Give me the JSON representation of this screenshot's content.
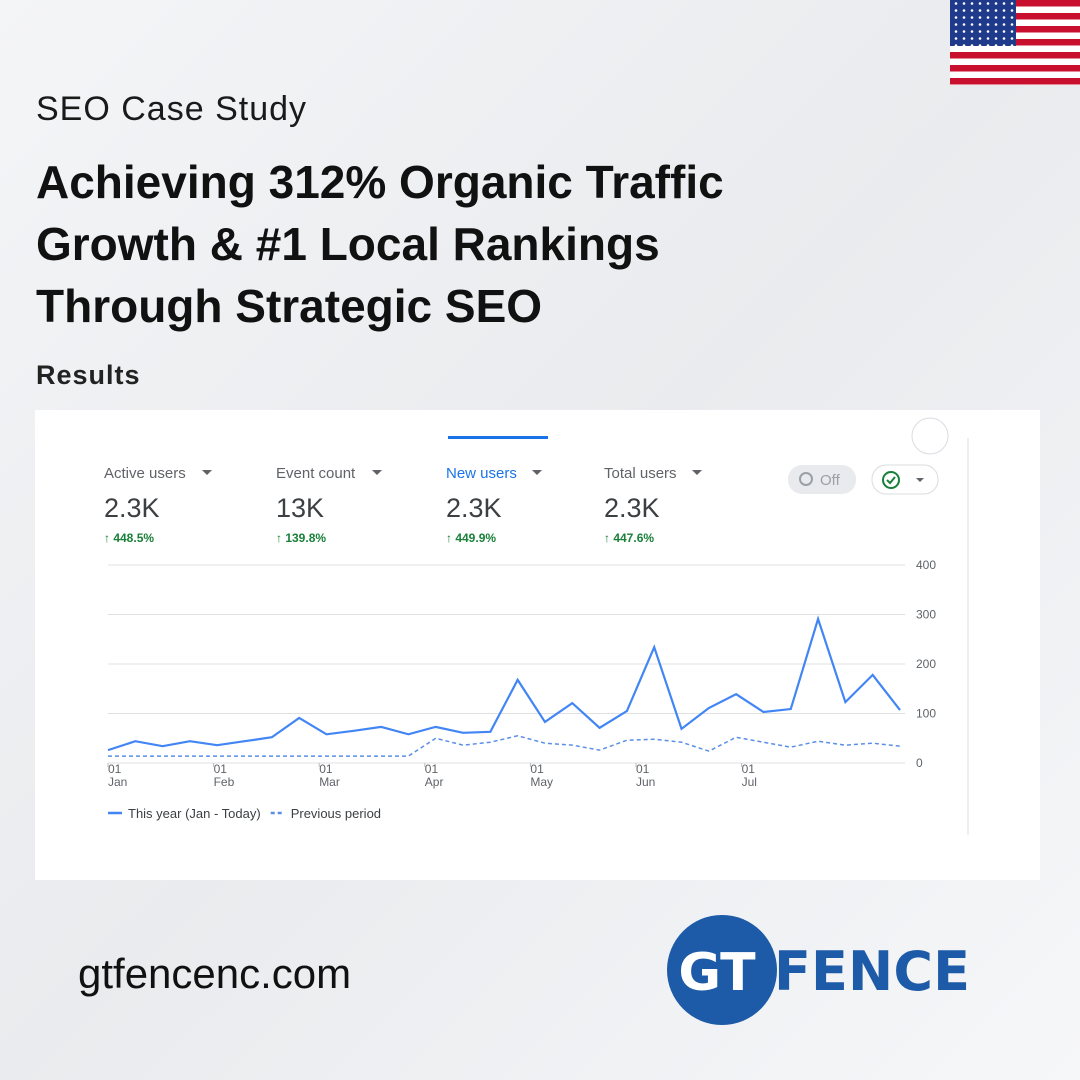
{
  "header": {
    "kicker": "SEO Case Study",
    "title_lines": [
      "Achieving 312% Organic Traffic",
      "Growth & #1 Local Rankings",
      "Through Strategic SEO"
    ],
    "section": "Results"
  },
  "metrics": [
    {
      "label": "Active users",
      "value": "2.3K",
      "change": "↑ 448.5%"
    },
    {
      "label": "Event count",
      "value": "13K",
      "change": "↑ 139.8%"
    },
    {
      "label": "New users",
      "value": "2.3K",
      "change": "↑ 449.9%"
    },
    {
      "label": "Total users",
      "value": "2.3K",
      "change": "↑ 447.6%"
    }
  ],
  "compare_toggle": "Off",
  "chart": {
    "type": "line",
    "x_ticks": [
      {
        "day": "01",
        "month": "Jan"
      },
      {
        "day": "01",
        "month": "Feb"
      },
      {
        "day": "01",
        "month": "Mar"
      },
      {
        "day": "01",
        "month": "Apr"
      },
      {
        "day": "01",
        "month": "May"
      },
      {
        "day": "01",
        "month": "Jun"
      },
      {
        "day": "01",
        "month": "Jul"
      }
    ],
    "ylim": [
      0,
      400
    ],
    "yticks": [
      0,
      100,
      200,
      300,
      400
    ],
    "grid": true,
    "series": [
      {
        "name": "This year (Jan - Today)",
        "color": "#4285f4",
        "style": "solid",
        "values": [
          26,
          44,
          34,
          44,
          36,
          44,
          52,
          91,
          58,
          65,
          73,
          58,
          73,
          61,
          63,
          168,
          83,
          121,
          71,
          105,
          234,
          69,
          111,
          139,
          103,
          109,
          291,
          123,
          178,
          107
        ]
      },
      {
        "name": "Previous period",
        "color": "#5b8fe6",
        "style": "dashed",
        "values": [
          14,
          14,
          14,
          14,
          14,
          14,
          14,
          14,
          14,
          14,
          14,
          14,
          50,
          36,
          42,
          55,
          40,
          36,
          26,
          46,
          48,
          42,
          24,
          52,
          42,
          32,
          44,
          36,
          40,
          34
        ]
      }
    ]
  },
  "footer": {
    "website": "gtfencenc.com",
    "logo": {
      "mark": "GT",
      "word": "FENCE"
    }
  }
}
